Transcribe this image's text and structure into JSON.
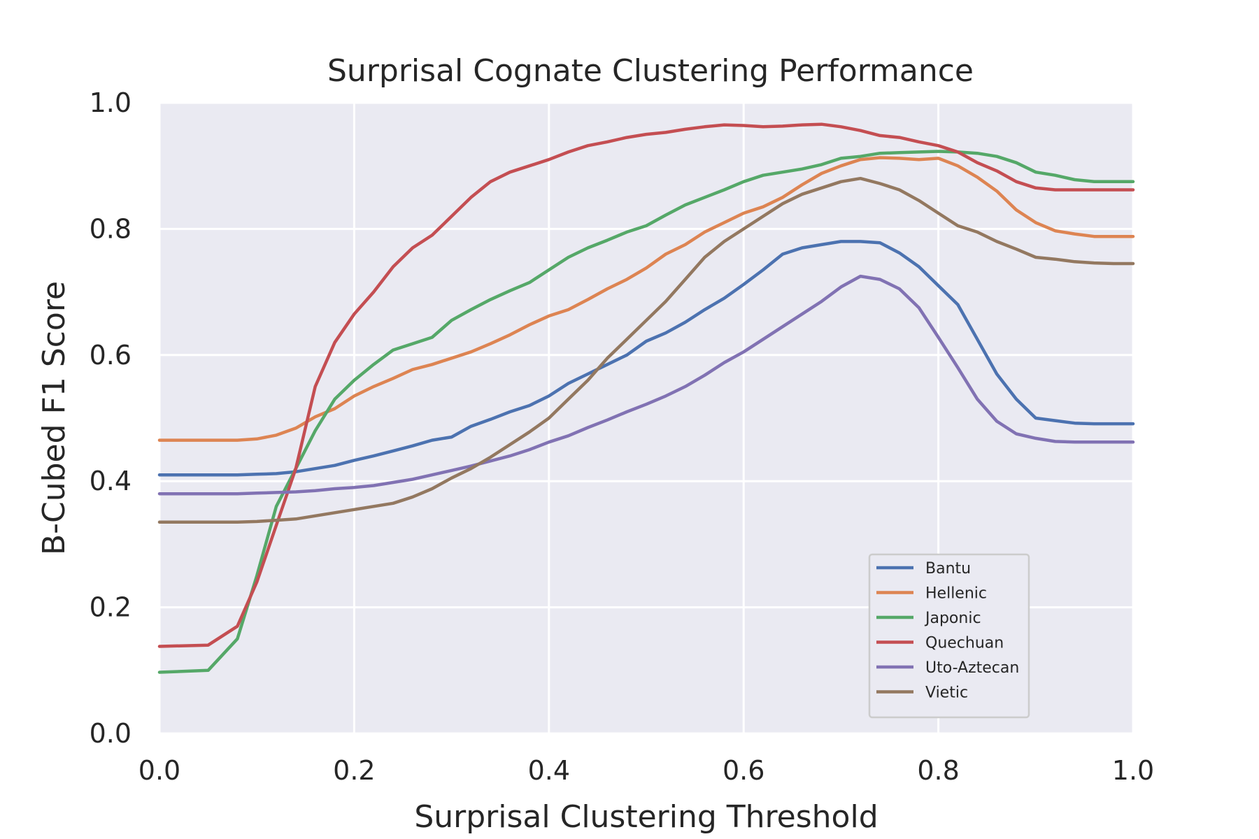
{
  "chart_data": {
    "type": "line",
    "title": "Surprisal Cognate Clustering Performance",
    "xlabel": "Surprisal Clustering Threshold",
    "ylabel": "B-Cubed F1 Score",
    "xlim": [
      0.0,
      1.0
    ],
    "ylim": [
      0.0,
      1.0
    ],
    "xticks": [
      "0.0",
      "0.2",
      "0.4",
      "0.6",
      "0.8",
      "1.0"
    ],
    "yticks": [
      "0.0",
      "0.2",
      "0.4",
      "0.6",
      "0.8",
      "1.0"
    ],
    "grid": true,
    "legend_position": "lower-right",
    "x": [
      0.0,
      0.05,
      0.08,
      0.1,
      0.12,
      0.14,
      0.16,
      0.18,
      0.2,
      0.22,
      0.24,
      0.26,
      0.28,
      0.3,
      0.32,
      0.34,
      0.36,
      0.38,
      0.4,
      0.42,
      0.44,
      0.46,
      0.48,
      0.5,
      0.52,
      0.54,
      0.56,
      0.58,
      0.6,
      0.62,
      0.64,
      0.66,
      0.68,
      0.7,
      0.72,
      0.74,
      0.76,
      0.78,
      0.8,
      0.82,
      0.84,
      0.86,
      0.88,
      0.9,
      0.92,
      0.94,
      0.96,
      0.98,
      1.0
    ],
    "series": [
      {
        "name": "Bantu",
        "color": "#4c72b0",
        "values": [
          0.41,
          0.41,
          0.41,
          0.411,
          0.412,
          0.415,
          0.42,
          0.425,
          0.433,
          0.44,
          0.448,
          0.456,
          0.465,
          0.47,
          0.487,
          0.498,
          0.51,
          0.52,
          0.535,
          0.555,
          0.57,
          0.585,
          0.6,
          0.622,
          0.635,
          0.652,
          0.672,
          0.69,
          0.712,
          0.735,
          0.76,
          0.77,
          0.775,
          0.78,
          0.78,
          0.778,
          0.762,
          0.74,
          0.71,
          0.68,
          0.625,
          0.57,
          0.53,
          0.5,
          0.496,
          0.492,
          0.491,
          0.491,
          0.491
        ]
      },
      {
        "name": "Hellenic",
        "color": "#dd8452",
        "values": [
          0.465,
          0.465,
          0.465,
          0.467,
          0.473,
          0.484,
          0.502,
          0.515,
          0.535,
          0.55,
          0.563,
          0.577,
          0.585,
          0.595,
          0.605,
          0.618,
          0.632,
          0.648,
          0.662,
          0.672,
          0.688,
          0.705,
          0.72,
          0.738,
          0.76,
          0.775,
          0.795,
          0.81,
          0.825,
          0.835,
          0.85,
          0.87,
          0.888,
          0.9,
          0.91,
          0.913,
          0.912,
          0.91,
          0.912,
          0.9,
          0.882,
          0.86,
          0.83,
          0.81,
          0.797,
          0.792,
          0.788,
          0.788,
          0.788
        ]
      },
      {
        "name": "Japonic",
        "color": "#55a868",
        "values": [
          0.097,
          0.1,
          0.15,
          0.25,
          0.36,
          0.42,
          0.48,
          0.53,
          0.56,
          0.585,
          0.608,
          0.618,
          0.628,
          0.655,
          0.672,
          0.688,
          0.702,
          0.715,
          0.735,
          0.755,
          0.77,
          0.782,
          0.795,
          0.805,
          0.822,
          0.838,
          0.85,
          0.862,
          0.875,
          0.885,
          0.89,
          0.895,
          0.902,
          0.912,
          0.915,
          0.92,
          0.921,
          0.922,
          0.923,
          0.922,
          0.92,
          0.915,
          0.905,
          0.89,
          0.885,
          0.878,
          0.875,
          0.875,
          0.875
        ]
      },
      {
        "name": "Quechuan",
        "color": "#c44e52",
        "values": [
          0.138,
          0.14,
          0.17,
          0.24,
          0.33,
          0.42,
          0.55,
          0.62,
          0.665,
          0.7,
          0.74,
          0.77,
          0.79,
          0.82,
          0.85,
          0.875,
          0.89,
          0.9,
          0.91,
          0.922,
          0.932,
          0.938,
          0.945,
          0.95,
          0.953,
          0.958,
          0.962,
          0.965,
          0.964,
          0.962,
          0.963,
          0.965,
          0.966,
          0.962,
          0.956,
          0.948,
          0.945,
          0.938,
          0.932,
          0.922,
          0.905,
          0.892,
          0.875,
          0.865,
          0.862,
          0.862,
          0.862,
          0.862,
          0.862
        ]
      },
      {
        "name": "Uto-Aztecan",
        "color": "#8172b3",
        "values": [
          0.38,
          0.38,
          0.38,
          0.381,
          0.382,
          0.383,
          0.385,
          0.388,
          0.39,
          0.393,
          0.398,
          0.403,
          0.41,
          0.417,
          0.424,
          0.432,
          0.44,
          0.45,
          0.462,
          0.472,
          0.485,
          0.497,
          0.51,
          0.522,
          0.535,
          0.55,
          0.568,
          0.588,
          0.605,
          0.625,
          0.645,
          0.665,
          0.685,
          0.708,
          0.725,
          0.72,
          0.705,
          0.675,
          0.628,
          0.58,
          0.53,
          0.495,
          0.475,
          0.468,
          0.463,
          0.462,
          0.462,
          0.462,
          0.462
        ]
      },
      {
        "name": "Vietic",
        "color": "#937860",
        "values": [
          0.335,
          0.335,
          0.335,
          0.336,
          0.338,
          0.34,
          0.345,
          0.35,
          0.355,
          0.36,
          0.365,
          0.375,
          0.388,
          0.405,
          0.42,
          0.438,
          0.458,
          0.478,
          0.5,
          0.53,
          0.56,
          0.595,
          0.625,
          0.655,
          0.685,
          0.72,
          0.755,
          0.78,
          0.8,
          0.82,
          0.84,
          0.855,
          0.865,
          0.875,
          0.88,
          0.872,
          0.862,
          0.845,
          0.825,
          0.805,
          0.795,
          0.78,
          0.768,
          0.755,
          0.752,
          0.748,
          0.746,
          0.745,
          0.745
        ]
      }
    ]
  }
}
